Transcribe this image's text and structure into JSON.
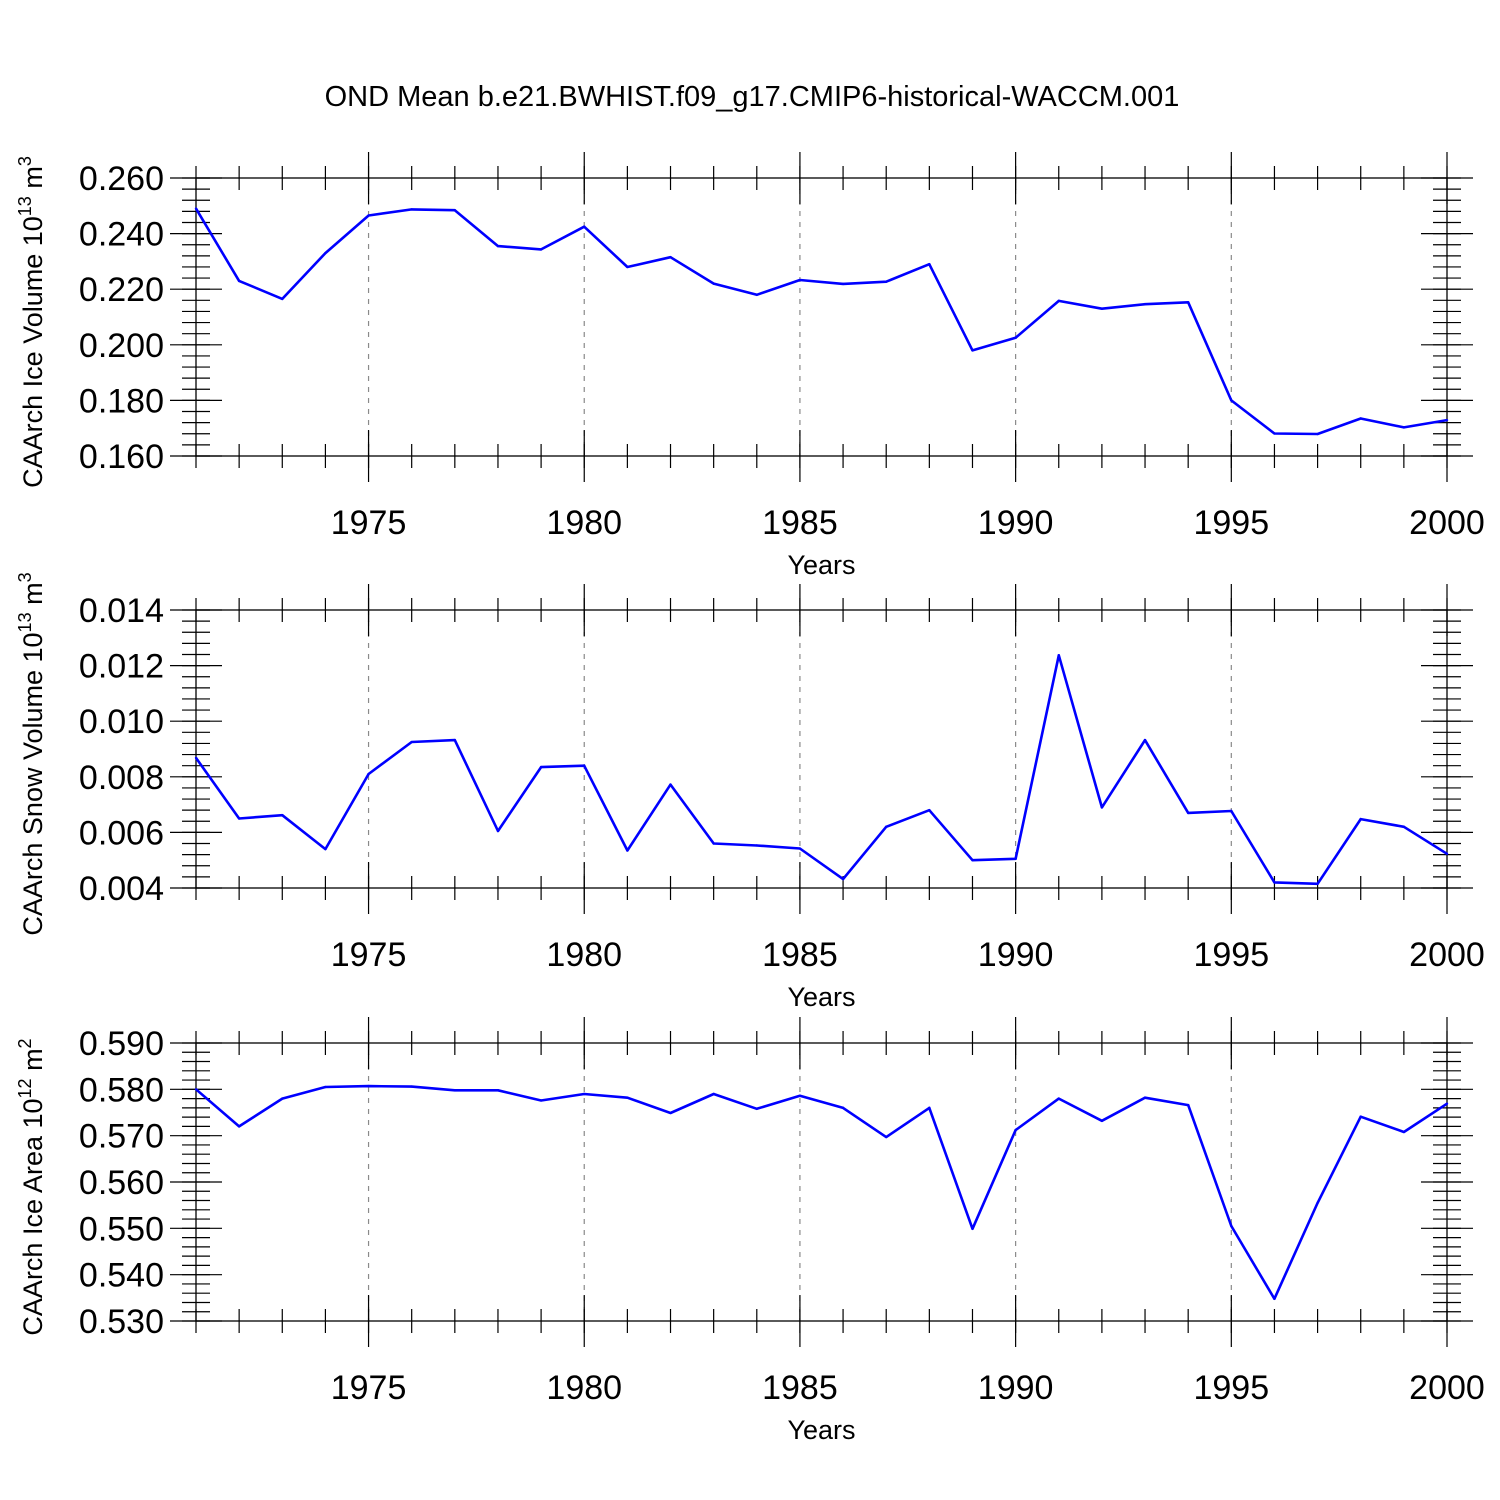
{
  "title": "OND Mean b.e21.BWHIST.f09_g17.CMIP6-historical-WACCM.001",
  "chart_data": [
    {
      "type": "line",
      "ylabel": "CAArch Ice Volume 10",
      "ylabel_exp": "13",
      "ylabel_unit": " m",
      "ylabel_unit_exp": "3",
      "xlabel": "Years",
      "xlim": [
        1971,
        2000
      ],
      "ylim": [
        0.16,
        0.26
      ],
      "y_ticks": [
        "0.160",
        "0.180",
        "0.200",
        "0.220",
        "0.240",
        "0.260"
      ],
      "y_tick_values": [
        0.16,
        0.18,
        0.2,
        0.22,
        0.24,
        0.26
      ],
      "y_minor_step": 0.004,
      "x_ticks": [
        "1975",
        "1980",
        "1985",
        "1990",
        "1995",
        "2000"
      ],
      "x_tick_values": [
        1975,
        1980,
        1985,
        1990,
        1995,
        2000
      ],
      "grid": "vertical dashed at labeled years",
      "color": "#0000ff",
      "x": [
        1971,
        1972,
        1973,
        1974,
        1975,
        1976,
        1977,
        1978,
        1979,
        1980,
        1981,
        1982,
        1983,
        1984,
        1985,
        1986,
        1987,
        1988,
        1989,
        1990,
        1991,
        1992,
        1993,
        1994,
        1995,
        1996,
        1997,
        1998,
        1999,
        2000
      ],
      "y": [
        0.249,
        0.223,
        0.2165,
        0.233,
        0.2465,
        0.2487,
        0.2484,
        0.2355,
        0.2343,
        0.2425,
        0.228,
        0.2315,
        0.222,
        0.218,
        0.2233,
        0.2219,
        0.2227,
        0.229,
        0.198,
        0.2025,
        0.2158,
        0.213,
        0.2146,
        0.2153,
        0.18,
        0.1681,
        0.1679,
        0.1735,
        0.1703,
        0.1729
      ]
    },
    {
      "type": "line",
      "ylabel": "CAArch Snow Volume 10",
      "ylabel_exp": "13",
      "ylabel_unit": " m",
      "ylabel_unit_exp": "3",
      "xlabel": "Years",
      "xlim": [
        1971,
        2000
      ],
      "ylim": [
        0.004,
        0.014
      ],
      "y_ticks": [
        "0.004",
        "0.006",
        "0.008",
        "0.010",
        "0.012",
        "0.014"
      ],
      "y_tick_values": [
        0.004,
        0.006,
        0.008,
        0.01,
        0.012,
        0.014
      ],
      "y_minor_step": 0.0004,
      "x_ticks": [
        "1975",
        "1980",
        "1985",
        "1990",
        "1995",
        "2000"
      ],
      "x_tick_values": [
        1975,
        1980,
        1985,
        1990,
        1995,
        2000
      ],
      "grid": "vertical dashed at labeled years",
      "color": "#0000ff",
      "x": [
        1971,
        1972,
        1973,
        1974,
        1975,
        1976,
        1977,
        1978,
        1979,
        1980,
        1981,
        1982,
        1983,
        1984,
        1985,
        1986,
        1987,
        1988,
        1989,
        1990,
        1991,
        1992,
        1993,
        1994,
        1995,
        1996,
        1997,
        1998,
        1999,
        2000
      ],
      "y": [
        0.00868,
        0.0065,
        0.00662,
        0.0054,
        0.0081,
        0.00925,
        0.00932,
        0.00605,
        0.00835,
        0.0084,
        0.00535,
        0.00772,
        0.0056,
        0.00553,
        0.00542,
        0.00432,
        0.0062,
        0.0068,
        0.005,
        0.00505,
        0.01237,
        0.0069,
        0.00932,
        0.0067,
        0.00677,
        0.0042,
        0.00415,
        0.00648,
        0.0062,
        0.00523
      ]
    },
    {
      "type": "line",
      "ylabel": "CAArch Ice Area 10",
      "ylabel_exp": "12",
      "ylabel_unit": " m",
      "ylabel_unit_exp": "2",
      "xlabel": "Years",
      "xlim": [
        1971,
        2000
      ],
      "ylim": [
        0.53,
        0.59
      ],
      "y_ticks": [
        "0.530",
        "0.540",
        "0.550",
        "0.560",
        "0.570",
        "0.580",
        "0.590"
      ],
      "y_tick_values": [
        0.53,
        0.54,
        0.55,
        0.56,
        0.57,
        0.58,
        0.59
      ],
      "y_minor_step": 0.002,
      "x_ticks": [
        "1975",
        "1980",
        "1985",
        "1990",
        "1995",
        "2000"
      ],
      "x_tick_values": [
        1975,
        1980,
        1985,
        1990,
        1995,
        2000
      ],
      "grid": "vertical dashed at labeled years",
      "color": "#0000ff",
      "x": [
        1971,
        1972,
        1973,
        1974,
        1975,
        1976,
        1977,
        1978,
        1979,
        1980,
        1981,
        1982,
        1983,
        1984,
        1985,
        1986,
        1987,
        1988,
        1989,
        1990,
        1991,
        1992,
        1993,
        1994,
        1995,
        1996,
        1997,
        1998,
        1999,
        2000
      ],
      "y": [
        0.58,
        0.572,
        0.578,
        0.5805,
        0.5807,
        0.5806,
        0.5798,
        0.5798,
        0.5776,
        0.579,
        0.5782,
        0.5749,
        0.579,
        0.5758,
        0.5786,
        0.576,
        0.5697,
        0.576,
        0.5499,
        0.5712,
        0.578,
        0.5732,
        0.5782,
        0.5766,
        0.5505,
        0.5348,
        0.5555,
        0.5741,
        0.5708,
        0.5769
      ]
    }
  ]
}
